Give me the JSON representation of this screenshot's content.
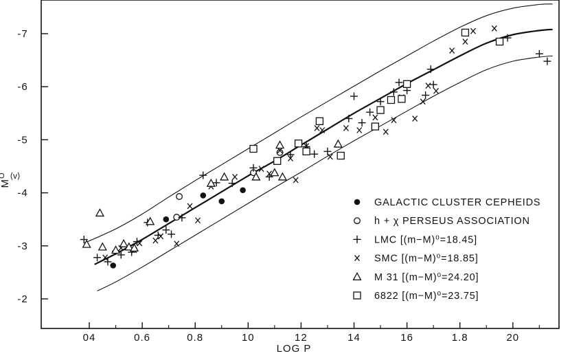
{
  "chart_data": {
    "type": "scatter",
    "title": "",
    "xlabel": "LOG P",
    "ylabel_main": "M",
    "ylabel_sup": "O",
    "ylabel_sub": "⟨v⟩",
    "xlim": [
      0.2,
      2.18
    ],
    "ylim": [
      -1.2,
      -7.6
    ],
    "x_ticks": [
      0.4,
      0.6,
      0.8,
      1.0,
      1.2,
      1.4,
      1.6,
      1.8,
      2.0
    ],
    "x_tick_labels": [
      "04",
      "0.6",
      "0.8",
      "10",
      "12",
      "14",
      "16",
      "1.8",
      "20"
    ],
    "y_ticks": [
      -2,
      -3,
      -4,
      -5,
      -6,
      -7
    ],
    "y_tick_labels": [
      "-2",
      "-3",
      "-4",
      "-5",
      "-6",
      "-7"
    ],
    "grid": false,
    "legend_position": "bottom-right",
    "legend": [
      {
        "marker": "filled-circle",
        "label": "GALACTIC CLUSTER CEPHEIDS"
      },
      {
        "marker": "open-circle",
        "label": "h + χ  PERSEUS ASSOCIATION"
      },
      {
        "marker": "plus",
        "label": "LMC  [(m−M)⁰=18.45]"
      },
      {
        "marker": "cross",
        "label": "SMC  [(m−M)⁰=18.85]"
      },
      {
        "marker": "triangle",
        "label": "M 31  [(m−M)⁰=24.20]"
      },
      {
        "marker": "square",
        "label": "6822 [(m−M)⁰=23.75]"
      }
    ],
    "curves": {
      "ridge_line": [
        [
          0.42,
          -2.65
        ],
        [
          0.5,
          -2.85
        ],
        [
          0.6,
          -3.12
        ],
        [
          0.7,
          -3.42
        ],
        [
          0.8,
          -3.72
        ],
        [
          0.9,
          -4.02
        ],
        [
          1.0,
          -4.32
        ],
        [
          1.1,
          -4.6
        ],
        [
          1.2,
          -4.9
        ],
        [
          1.3,
          -5.2
        ],
        [
          1.4,
          -5.5
        ],
        [
          1.5,
          -5.78
        ],
        [
          1.6,
          -6.06
        ],
        [
          1.7,
          -6.32
        ],
        [
          1.8,
          -6.58
        ],
        [
          1.9,
          -6.82
        ],
        [
          2.0,
          -6.98
        ],
        [
          2.1,
          -7.06
        ],
        [
          2.15,
          -7.08
        ]
      ],
      "upper_envelope": [
        [
          0.38,
          -3.05
        ],
        [
          0.5,
          -3.32
        ],
        [
          0.6,
          -3.6
        ],
        [
          0.7,
          -3.92
        ],
        [
          0.8,
          -4.23
        ],
        [
          0.9,
          -4.53
        ],
        [
          1.0,
          -4.83
        ],
        [
          1.1,
          -5.13
        ],
        [
          1.2,
          -5.43
        ],
        [
          1.3,
          -5.72
        ],
        [
          1.4,
          -6.01
        ],
        [
          1.5,
          -6.3
        ],
        [
          1.6,
          -6.58
        ],
        [
          1.7,
          -6.86
        ],
        [
          1.8,
          -7.12
        ],
        [
          1.9,
          -7.34
        ],
        [
          2.0,
          -7.48
        ],
        [
          2.1,
          -7.55
        ],
        [
          2.15,
          -7.56
        ]
      ],
      "lower_envelope": [
        [
          0.43,
          -2.15
        ],
        [
          0.5,
          -2.32
        ],
        [
          0.6,
          -2.6
        ],
        [
          0.7,
          -2.9
        ],
        [
          0.8,
          -3.2
        ],
        [
          0.9,
          -3.5
        ],
        [
          1.0,
          -3.8
        ],
        [
          1.1,
          -4.1
        ],
        [
          1.2,
          -4.39
        ],
        [
          1.3,
          -4.69
        ],
        [
          1.4,
          -4.98
        ],
        [
          1.5,
          -5.26
        ],
        [
          1.6,
          -5.54
        ],
        [
          1.7,
          -5.82
        ],
        [
          1.8,
          -6.08
        ],
        [
          1.9,
          -6.32
        ],
        [
          2.0,
          -6.48
        ],
        [
          2.1,
          -6.56
        ],
        [
          2.15,
          -6.58
        ]
      ]
    },
    "series": [
      {
        "marker": "filled-circle",
        "points": [
          [
            0.49,
            -2.63
          ],
          [
            0.69,
            -3.5
          ],
          [
            0.83,
            -3.95
          ],
          [
            0.9,
            -3.84
          ],
          [
            0.98,
            -4.05
          ]
        ]
      },
      {
        "marker": "open-circle",
        "points": [
          [
            0.74,
            -3.93
          ],
          [
            0.73,
            -3.54
          ],
          [
            1.02,
            -4.38
          ],
          [
            1.12,
            -4.76
          ]
        ]
      },
      {
        "marker": "plus",
        "points": [
          [
            0.38,
            -3.12
          ],
          [
            0.43,
            -2.78
          ],
          [
            0.47,
            -2.7
          ],
          [
            0.5,
            -2.9
          ],
          [
            0.52,
            -2.83
          ],
          [
            0.56,
            -2.88
          ],
          [
            0.58,
            -3.08
          ],
          [
            0.62,
            -3.44
          ],
          [
            0.66,
            -3.2
          ],
          [
            0.69,
            -3.3
          ],
          [
            0.71,
            -3.22
          ],
          [
            0.75,
            -3.53
          ],
          [
            0.83,
            -4.33
          ],
          [
            0.88,
            -4.19
          ],
          [
            0.94,
            -4.18
          ],
          [
            1.02,
            -4.47
          ],
          [
            1.08,
            -4.3
          ],
          [
            1.16,
            -4.72
          ],
          [
            1.22,
            -4.87
          ],
          [
            1.25,
            -4.73
          ],
          [
            1.3,
            -4.78
          ],
          [
            1.38,
            -5.4
          ],
          [
            1.4,
            -5.82
          ],
          [
            1.43,
            -5.32
          ],
          [
            1.46,
            -5.52
          ],
          [
            1.5,
            -5.72
          ],
          [
            1.55,
            -5.9
          ],
          [
            1.57,
            -6.08
          ],
          [
            1.6,
            -5.93
          ],
          [
            1.67,
            -5.84
          ],
          [
            1.69,
            -6.33
          ],
          [
            1.7,
            -6.04
          ],
          [
            1.98,
            -6.92
          ],
          [
            2.1,
            -6.62
          ],
          [
            2.13,
            -6.48
          ]
        ]
      },
      {
        "marker": "cross",
        "points": [
          [
            0.46,
            -2.78
          ],
          [
            0.52,
            -2.96
          ],
          [
            0.57,
            -2.92
          ],
          [
            0.59,
            -3.05
          ],
          [
            0.65,
            -3.1
          ],
          [
            0.67,
            -3.18
          ],
          [
            0.73,
            -3.04
          ],
          [
            0.78,
            -3.75
          ],
          [
            0.81,
            -3.48
          ],
          [
            0.86,
            -4.12
          ],
          [
            0.95,
            -4.3
          ],
          [
            1.05,
            -4.45
          ],
          [
            1.08,
            -4.36
          ],
          [
            1.12,
            -4.8
          ],
          [
            1.16,
            -4.65
          ],
          [
            1.18,
            -4.24
          ],
          [
            1.22,
            -4.88
          ],
          [
            1.26,
            -5.22
          ],
          [
            1.28,
            -5.18
          ],
          [
            1.31,
            -4.68
          ],
          [
            1.37,
            -5.22
          ],
          [
            1.42,
            -5.18
          ],
          [
            1.48,
            -5.42
          ],
          [
            1.52,
            -5.15
          ],
          [
            1.55,
            -5.37
          ],
          [
            1.58,
            -5.8
          ],
          [
            1.63,
            -5.4
          ],
          [
            1.66,
            -5.72
          ],
          [
            1.68,
            -6.02
          ],
          [
            1.71,
            -5.92
          ],
          [
            1.77,
            -6.68
          ],
          [
            1.82,
            -6.85
          ],
          [
            1.85,
            -7.05
          ],
          [
            1.93,
            -7.1
          ]
        ]
      },
      {
        "marker": "triangle",
        "points": [
          [
            0.39,
            -3.03
          ],
          [
            0.44,
            -3.62
          ],
          [
            0.45,
            -2.98
          ],
          [
            0.5,
            -2.92
          ],
          [
            0.53,
            -3.04
          ],
          [
            0.55,
            -2.98
          ],
          [
            0.57,
            -2.96
          ],
          [
            0.63,
            -3.46
          ],
          [
            0.86,
            -4.18
          ],
          [
            0.91,
            -4.3
          ],
          [
            1.03,
            -4.3
          ],
          [
            1.1,
            -4.38
          ],
          [
            1.12,
            -4.9
          ],
          [
            1.13,
            -4.3
          ],
          [
            1.34,
            -4.92
          ]
        ]
      },
      {
        "marker": "square",
        "points": [
          [
            1.02,
            -4.83
          ],
          [
            1.11,
            -4.6
          ],
          [
            1.19,
            -4.93
          ],
          [
            1.22,
            -4.78
          ],
          [
            1.27,
            -5.35
          ],
          [
            1.35,
            -4.7
          ],
          [
            1.48,
            -5.25
          ],
          [
            1.5,
            -5.56
          ],
          [
            1.54,
            -5.75
          ],
          [
            1.58,
            -5.77
          ],
          [
            1.6,
            -6.05
          ],
          [
            1.82,
            -7.02
          ],
          [
            1.95,
            -6.85
          ]
        ]
      }
    ]
  }
}
